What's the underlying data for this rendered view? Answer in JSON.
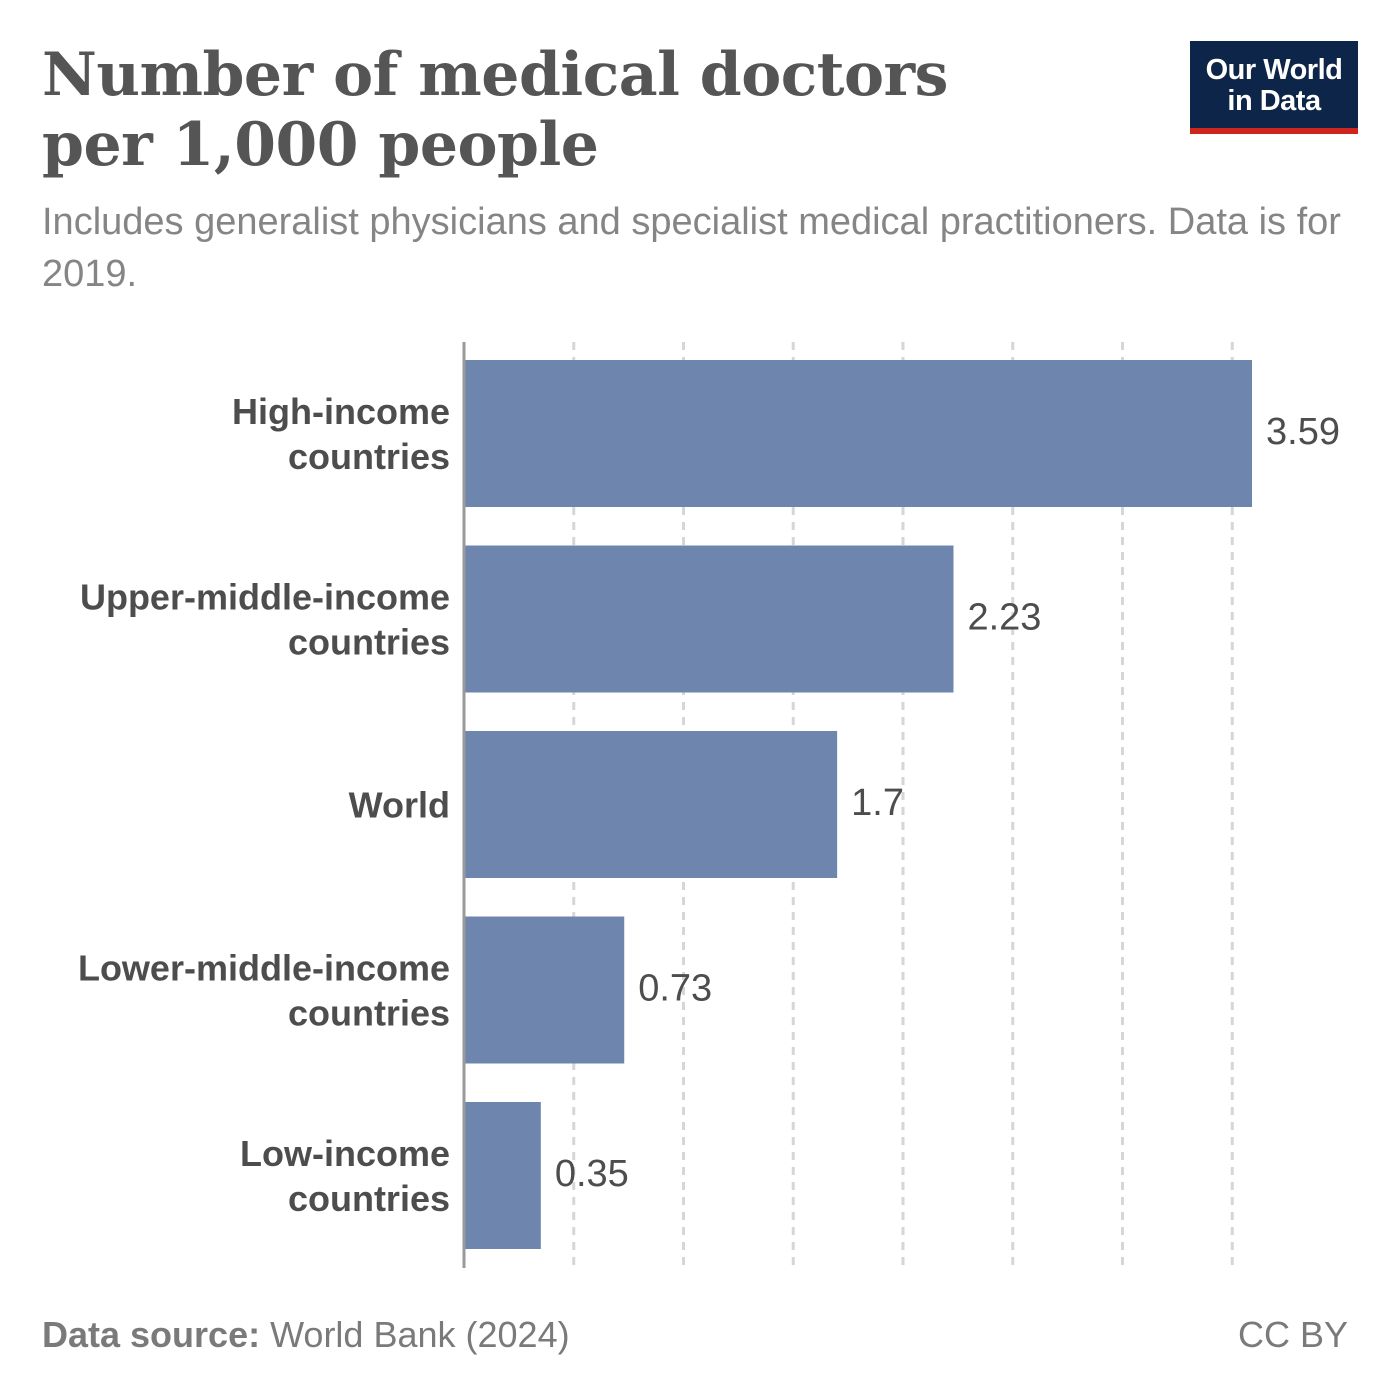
{
  "title": "Number of medical doctors per 1,000 people",
  "subtitle": "Includes generalist physicians and specialist medical practitioners. Data is for 2019.",
  "logo": {
    "line1": "Our World",
    "line2": "in Data",
    "bg_color": "#0c2548",
    "accent_color": "#ce261e"
  },
  "footer": {
    "source_label": "Data source:",
    "source_value": "World Bank (2024)",
    "license": "CC BY"
  },
  "chart_data": {
    "type": "bar",
    "orientation": "horizontal",
    "categories": [
      [
        "High-income",
        "countries"
      ],
      [
        "Upper-middle-income",
        "countries"
      ],
      [
        "World"
      ],
      [
        "Lower-middle-income",
        "countries"
      ],
      [
        "Low-income",
        "countries"
      ]
    ],
    "values": [
      3.59,
      2.23,
      1.7,
      0.73,
      0.35
    ],
    "value_labels": [
      "3.59",
      "2.23",
      "1.7",
      "0.73",
      "0.35"
    ],
    "xlim": [
      0,
      3.59
    ],
    "gridlines": [
      0.5,
      1,
      1.5,
      2,
      2.5,
      3,
      3.5
    ],
    "grid": "dashed vertical",
    "bar_color": "#6e86ae",
    "axis_color": "#999999"
  }
}
